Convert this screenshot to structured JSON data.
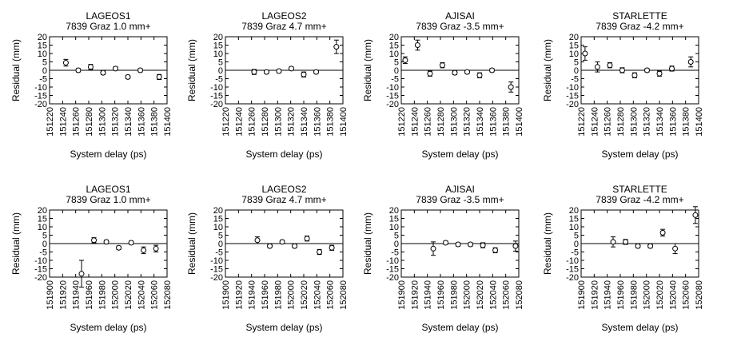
{
  "chart_data": [
    {
      "type": "scatter",
      "title": "LAGEOS1",
      "subtitle": "7839 Graz  1.0 mm+",
      "xlabel": "System delay (ps)",
      "ylabel": "Residual (mm)",
      "xlim": [
        151220,
        151400
      ],
      "ylim": [
        -20,
        20
      ],
      "xticks": [
        "151220",
        "151240",
        "151260",
        "151280",
        "151300",
        "151320",
        "151340",
        "151360",
        "151380",
        "151400"
      ],
      "yticks": [
        "20",
        "15",
        "10",
        "5",
        "0",
        "-5",
        "-10",
        "-15",
        "-20"
      ],
      "zero_line": true,
      "grid": false,
      "points": [
        {
          "x": 151245,
          "y": 4.5,
          "err": 2
        },
        {
          "x": 151264,
          "y": 0,
          "err": 1
        },
        {
          "x": 151283,
          "y": 2,
          "err": 1.5
        },
        {
          "x": 151302,
          "y": -1.5,
          "err": 1
        },
        {
          "x": 151321,
          "y": 1,
          "err": 1
        },
        {
          "x": 151340,
          "y": -4,
          "err": 1
        },
        {
          "x": 151359,
          "y": 0,
          "err": 1
        },
        {
          "x": 151388,
          "y": -4,
          "err": 1.5
        }
      ]
    },
    {
      "type": "scatter",
      "title": "LAGEOS2",
      "subtitle": "7839 Graz  4.7 mm+",
      "xlabel": "System delay (ps)",
      "ylabel": "Residual (mm)",
      "xlim": [
        151220,
        151400
      ],
      "ylim": [
        -20,
        20
      ],
      "xticks": [
        "151220",
        "151240",
        "151260",
        "151280",
        "151300",
        "151320",
        "151340",
        "151360",
        "151380",
        "151400"
      ],
      "yticks": [
        "20",
        "15",
        "10",
        "5",
        "0",
        "-5",
        "-10",
        "-15",
        "-20"
      ],
      "zero_line": true,
      "grid": false,
      "points": [
        {
          "x": 151264,
          "y": -1,
          "err": 1.5
        },
        {
          "x": 151283,
          "y": -1,
          "err": 1
        },
        {
          "x": 151302,
          "y": -0.5,
          "err": 1
        },
        {
          "x": 151321,
          "y": 1,
          "err": 1
        },
        {
          "x": 151340,
          "y": -2.5,
          "err": 1.5
        },
        {
          "x": 151359,
          "y": -1,
          "err": 1
        },
        {
          "x": 151390,
          "y": 14,
          "err": 4
        }
      ]
    },
    {
      "type": "scatter",
      "title": "AJISAI",
      "subtitle": "7839 Graz  -3.5 mm+",
      "xlabel": "System delay (ps)",
      "ylabel": "Residual (mm)",
      "xlim": [
        151220,
        151400
      ],
      "ylim": [
        -20,
        20
      ],
      "xticks": [
        "151220",
        "151240",
        "151260",
        "151280",
        "151300",
        "151320",
        "151340",
        "151360",
        "151380",
        "151400"
      ],
      "yticks": [
        "20",
        "15",
        "10",
        "5",
        "0",
        "-5",
        "-10",
        "-15",
        "-20"
      ],
      "zero_line": true,
      "grid": false,
      "points": [
        {
          "x": 151226,
          "y": 6,
          "err": 2
        },
        {
          "x": 151245,
          "y": 15,
          "err": 3
        },
        {
          "x": 151264,
          "y": -2,
          "err": 1.5
        },
        {
          "x": 151283,
          "y": 3,
          "err": 1.5
        },
        {
          "x": 151302,
          "y": -1.5,
          "err": 1
        },
        {
          "x": 151321,
          "y": -1,
          "err": 1
        },
        {
          "x": 151340,
          "y": -3,
          "err": 1.5
        },
        {
          "x": 151359,
          "y": 0,
          "err": 1
        },
        {
          "x": 151388,
          "y": -10,
          "err": 3
        }
      ]
    },
    {
      "type": "scatter",
      "title": "STARLETTE",
      "subtitle": "7839 Graz  -4.2 mm+",
      "xlabel": "System delay (ps)",
      "ylabel": "Residual (mm)",
      "xlim": [
        151220,
        151400
      ],
      "ylim": [
        -20,
        20
      ],
      "xticks": [
        "151220",
        "151240",
        "151260",
        "151280",
        "151300",
        "151320",
        "151340",
        "151360",
        "151380",
        "151400"
      ],
      "yticks": [
        "20",
        "15",
        "10",
        "5",
        "0",
        "-5",
        "-10",
        "-15",
        "-20"
      ],
      "zero_line": true,
      "grid": false,
      "points": [
        {
          "x": 151226,
          "y": 10,
          "err": 4
        },
        {
          "x": 151245,
          "y": 2,
          "err": 3
        },
        {
          "x": 151264,
          "y": 3,
          "err": 1.5
        },
        {
          "x": 151283,
          "y": 0,
          "err": 1.5
        },
        {
          "x": 151302,
          "y": -3,
          "err": 1.5
        },
        {
          "x": 151321,
          "y": 0,
          "err": 1
        },
        {
          "x": 151340,
          "y": -2,
          "err": 1.5
        },
        {
          "x": 151359,
          "y": 1,
          "err": 1.5
        },
        {
          "x": 151388,
          "y": 5,
          "err": 3
        }
      ]
    },
    {
      "type": "scatter",
      "title": "LAGEOS1",
      "subtitle": "7839 Graz  1.0 mm+",
      "xlabel": "System delay (ps)",
      "ylabel": "Residual (mm)",
      "xlim": [
        151900,
        152080
      ],
      "ylim": [
        -20,
        20
      ],
      "xticks": [
        "151900",
        "151920",
        "151940",
        "151960",
        "151980",
        "152000",
        "152020",
        "152040",
        "152060",
        "152080"
      ],
      "yticks": [
        "20",
        "15",
        "10",
        "5",
        "0",
        "-5",
        "-10",
        "-15",
        "-20"
      ],
      "zero_line": true,
      "grid": false,
      "points": [
        {
          "x": 151949,
          "y": -18,
          "err": 8
        },
        {
          "x": 151968,
          "y": 2,
          "err": 1.5
        },
        {
          "x": 151987,
          "y": 1,
          "err": 1
        },
        {
          "x": 152006,
          "y": -2.5,
          "err": 1
        },
        {
          "x": 152025,
          "y": 0.5,
          "err": 1
        },
        {
          "x": 152044,
          "y": -4,
          "err": 2
        },
        {
          "x": 152063,
          "y": -3,
          "err": 2
        }
      ]
    },
    {
      "type": "scatter",
      "title": "LAGEOS2",
      "subtitle": "7839 Graz  4.7 mm+",
      "xlabel": "System delay (ps)",
      "ylabel": "Residual (mm)",
      "xlim": [
        151900,
        152080
      ],
      "ylim": [
        -20,
        20
      ],
      "xticks": [
        "151900",
        "151920",
        "151940",
        "151960",
        "151980",
        "152000",
        "152020",
        "152040",
        "152060",
        "152080"
      ],
      "yticks": [
        "20",
        "15",
        "10",
        "5",
        "0",
        "-5",
        "-10",
        "-15",
        "-20"
      ],
      "zero_line": true,
      "grid": false,
      "points": [
        {
          "x": 151949,
          "y": 2,
          "err": 2
        },
        {
          "x": 151968,
          "y": -1.5,
          "err": 1
        },
        {
          "x": 151987,
          "y": 1,
          "err": 1
        },
        {
          "x": 152006,
          "y": -1.5,
          "err": 1
        },
        {
          "x": 152025,
          "y": 3,
          "err": 1.5
        },
        {
          "x": 152044,
          "y": -5,
          "err": 1.5
        },
        {
          "x": 152063,
          "y": -2.5,
          "err": 1.5
        }
      ]
    },
    {
      "type": "scatter",
      "title": "AJISAI",
      "subtitle": "7839 Graz  -3.5 mm+",
      "xlabel": "System delay (ps)",
      "ylabel": "Residual (mm)",
      "xlim": [
        151900,
        152080
      ],
      "ylim": [
        -20,
        20
      ],
      "xticks": [
        "151900",
        "151920",
        "151940",
        "151960",
        "151980",
        "152000",
        "152020",
        "152040",
        "152060",
        "152080"
      ],
      "yticks": [
        "20",
        "15",
        "10",
        "5",
        "0",
        "-5",
        "-10",
        "-15",
        "-20"
      ],
      "zero_line": true,
      "grid": false,
      "points": [
        {
          "x": 151949,
          "y": -3,
          "err": 4
        },
        {
          "x": 151968,
          "y": 0.5,
          "err": 1
        },
        {
          "x": 151987,
          "y": -0.5,
          "err": 1
        },
        {
          "x": 152006,
          "y": -0.5,
          "err": 1
        },
        {
          "x": 152025,
          "y": -1,
          "err": 1.5
        },
        {
          "x": 152044,
          "y": -4,
          "err": 1.5
        },
        {
          "x": 152075,
          "y": -1.5,
          "err": 3
        }
      ]
    },
    {
      "type": "scatter",
      "title": "STARLETTE",
      "subtitle": "7839 Graz  -4.2 mm+",
      "xlabel": "System delay (ps)",
      "ylabel": "Residual (mm)",
      "xlim": [
        151900,
        152080
      ],
      "ylim": [
        -20,
        20
      ],
      "xticks": [
        "151900",
        "151920",
        "151940",
        "151960",
        "151980",
        "152000",
        "152020",
        "152040",
        "152060",
        "152080"
      ],
      "yticks": [
        "20",
        "15",
        "10",
        "5",
        "0",
        "-5",
        "-10",
        "-15",
        "-20"
      ],
      "zero_line": true,
      "grid": false,
      "points": [
        {
          "x": 151949,
          "y": 1,
          "err": 3
        },
        {
          "x": 151968,
          "y": 1,
          "err": 1.5
        },
        {
          "x": 151987,
          "y": -1.5,
          "err": 1
        },
        {
          "x": 152006,
          "y": -1.5,
          "err": 1
        },
        {
          "x": 152025,
          "y": 6.5,
          "err": 2
        },
        {
          "x": 152044,
          "y": -3,
          "err": 3
        },
        {
          "x": 152075,
          "y": 17,
          "err": 5
        }
      ]
    }
  ]
}
